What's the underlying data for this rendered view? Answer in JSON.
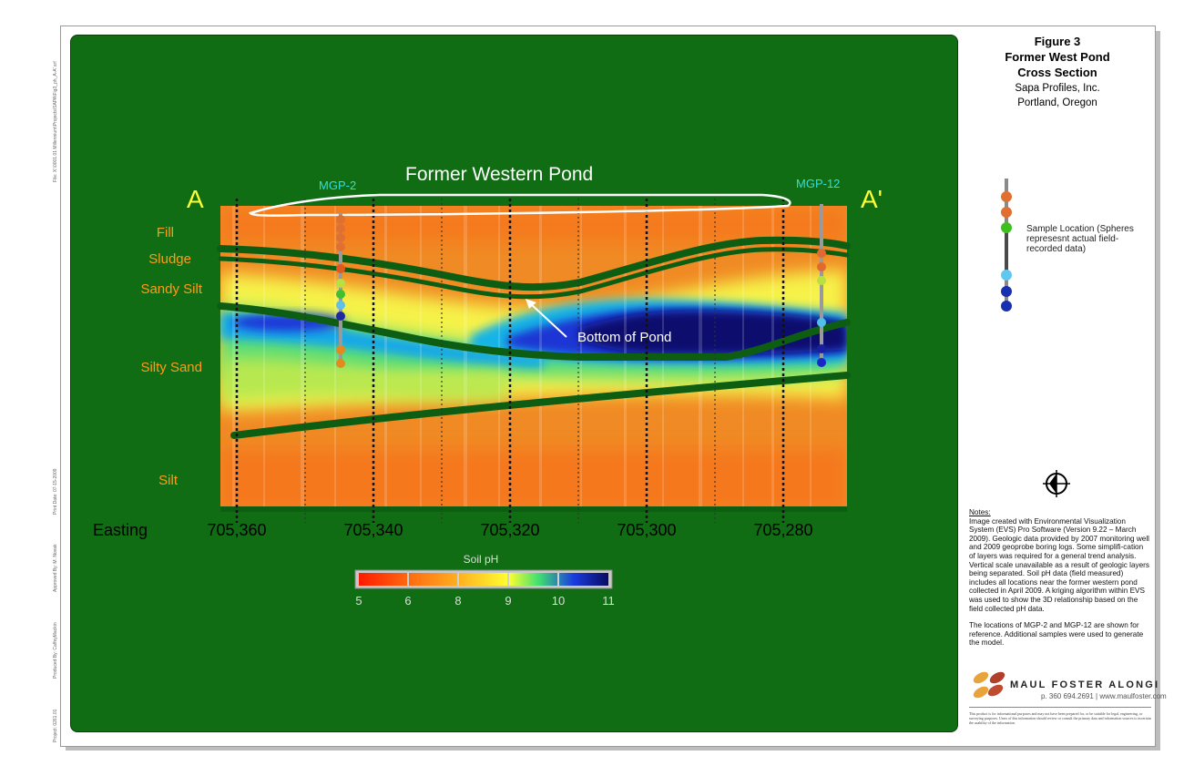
{
  "title_block": {
    "figure": "Figure 3",
    "line1": "Former West Pond",
    "line2": "Cross Section",
    "client": "Sapa Profiles, Inc.",
    "location": "Portland, Oregon"
  },
  "section": {
    "pond_label": "Former Western Pond",
    "bottom_label": "Bottom of Pond",
    "a_label": "A",
    "a_prime_label": "A'",
    "well_left": "MGP-2",
    "well_right": "MGP-12",
    "layers": [
      "Fill",
      "Sludge",
      "Sandy Silt",
      "Silty Sand",
      "Silt"
    ],
    "easting_label": "Easting",
    "easting_ticks": [
      "705,360",
      "705,340",
      "705,320",
      "705,300",
      "705,280"
    ]
  },
  "colorbar": {
    "title": "Soil pH",
    "ticks": [
      "5",
      "6",
      "8",
      "9",
      "10",
      "11"
    ],
    "colors": [
      "#ff1a00",
      "#ff7a10",
      "#ffe000",
      "#50e050",
      "#1838e0",
      "#0a0a6e"
    ]
  },
  "legend": {
    "text": "Sample Location (Spheres represesnt actual field-recorded data)"
  },
  "notes": {
    "header": "Notes:",
    "para1": "Image created with Environmental Visualization System (EVS) Pro Software (Version 9.22 – March 2009). Geologic data provided by 2007 monitoring well and 2009 geoprobe boring logs. Some simplifi-cation of layers was required for a general trend analysis. Vertical scale unavailable as a result of geologic layers being separated. Soil pH data (field measured) includes all locations near the former western pond collected in April 2009. A kriging algorithm within EVS was used to show the 3D relationship based on the field collected pH data.",
    "para2": "The locations of MGP-2 and MGP-12 are shown for reference. Additional samples were used to generate the model."
  },
  "company": {
    "name": "MAUL FOSTER ALONGI",
    "contact": "p. 360 694.2691 | www.maulfoster.com",
    "disclaimer": "This product is for informational purposes and may not have been prepared for, or be suitable for legal, engineering, or surveying purposes. Users of this information should review or consult the primary data and information sources to ascertain the usability of the information."
  },
  "margin": {
    "file": "File: X:\\0001.01 Millennium\\Projects\\SAPA\\Fig3_ph_A-A'.srf",
    "print_date": "Print Date: 07-15-2009",
    "approved": "Approved By: M. Novak",
    "produced": "Produced By: CaffeyMackin",
    "project": "Project: 0261.01"
  },
  "colors": {
    "panel_green": "#116d13",
    "layer_line": "#0d5e12",
    "label_orange": "#ff9a1a",
    "label_yellow": "#ffff33",
    "label_cyan": "#33dddd"
  }
}
